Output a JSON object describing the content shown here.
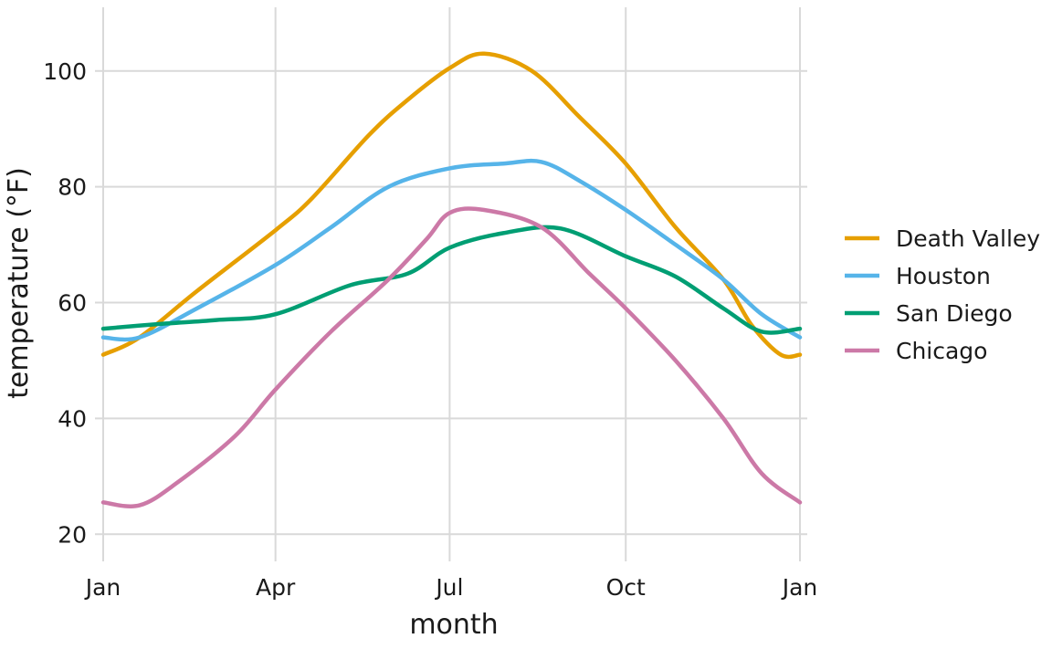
{
  "chart_data": {
    "type": "line",
    "title": "",
    "xlabel": "month",
    "ylabel": "temperature (°F)",
    "x_ticks": [
      {
        "label": "Jan",
        "day": 1
      },
      {
        "label": "Apr",
        "day": 91
      },
      {
        "label": "Jul",
        "day": 182
      },
      {
        "label": "Oct",
        "day": 274
      },
      {
        "label": "Jan",
        "day": 365
      }
    ],
    "y_ticks": [
      20,
      40,
      60,
      80,
      100
    ],
    "xlim": [
      1,
      365
    ],
    "ylim": [
      18,
      111
    ],
    "grid": true,
    "legend_position": "right",
    "x_unit": "day of year",
    "series": [
      {
        "name": "Death Valley",
        "color": "#E69F00",
        "points": [
          [
            1,
            51
          ],
          [
            20,
            54
          ],
          [
            50,
            62
          ],
          [
            91,
            72.5
          ],
          [
            110,
            78
          ],
          [
            140,
            89
          ],
          [
            160,
            95
          ],
          [
            182,
            100.5
          ],
          [
            200,
            103
          ],
          [
            225,
            100
          ],
          [
            250,
            92
          ],
          [
            274,
            84
          ],
          [
            300,
            73
          ],
          [
            325,
            64
          ],
          [
            340,
            56
          ],
          [
            355,
            51
          ],
          [
            365,
            51
          ]
        ]
      },
      {
        "name": "Houston",
        "color": "#56B4E9",
        "points": [
          [
            1,
            54
          ],
          [
            20,
            54
          ],
          [
            50,
            59
          ],
          [
            91,
            66.5
          ],
          [
            120,
            73
          ],
          [
            150,
            80
          ],
          [
            182,
            83.2
          ],
          [
            210,
            84
          ],
          [
            230,
            84.3
          ],
          [
            250,
            81
          ],
          [
            274,
            76
          ],
          [
            300,
            70
          ],
          [
            325,
            64
          ],
          [
            345,
            58
          ],
          [
            365,
            54
          ]
        ]
      },
      {
        "name": "San Diego",
        "color": "#009E73",
        "points": [
          [
            1,
            55.5
          ],
          [
            30,
            56.3
          ],
          [
            60,
            57
          ],
          [
            91,
            58
          ],
          [
            130,
            63
          ],
          [
            160,
            65
          ],
          [
            182,
            69.5
          ],
          [
            210,
            72
          ],
          [
            240,
            72.8
          ],
          [
            274,
            68
          ],
          [
            300,
            64.5
          ],
          [
            325,
            59
          ],
          [
            345,
            55
          ],
          [
            365,
            55.5
          ]
        ]
      },
      {
        "name": "Chicago",
        "color": "#CC79A7",
        "points": [
          [
            1,
            25.5
          ],
          [
            20,
            25
          ],
          [
            40,
            29
          ],
          [
            70,
            37
          ],
          [
            91,
            45
          ],
          [
            120,
            55
          ],
          [
            150,
            64
          ],
          [
            170,
            71
          ],
          [
            182,
            75.5
          ],
          [
            200,
            76
          ],
          [
            230,
            73
          ],
          [
            255,
            65
          ],
          [
            274,
            59
          ],
          [
            300,
            50
          ],
          [
            325,
            40
          ],
          [
            345,
            30.5
          ],
          [
            365,
            25.5
          ]
        ]
      }
    ]
  }
}
